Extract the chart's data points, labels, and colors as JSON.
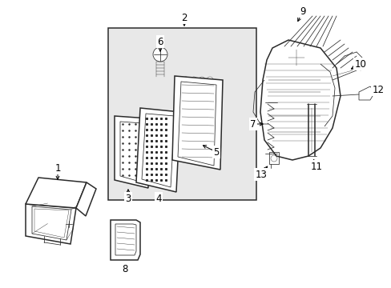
{
  "background_color": "#ffffff",
  "line_color": "#2a2a2a",
  "box_fill": "#e8e8e8",
  "fig_width": 4.89,
  "fig_height": 3.6,
  "dpi": 100,
  "label_fontsize": 8.5,
  "lw_main": 1.1,
  "lw_thin": 0.55,
  "lw_hair": 0.3
}
